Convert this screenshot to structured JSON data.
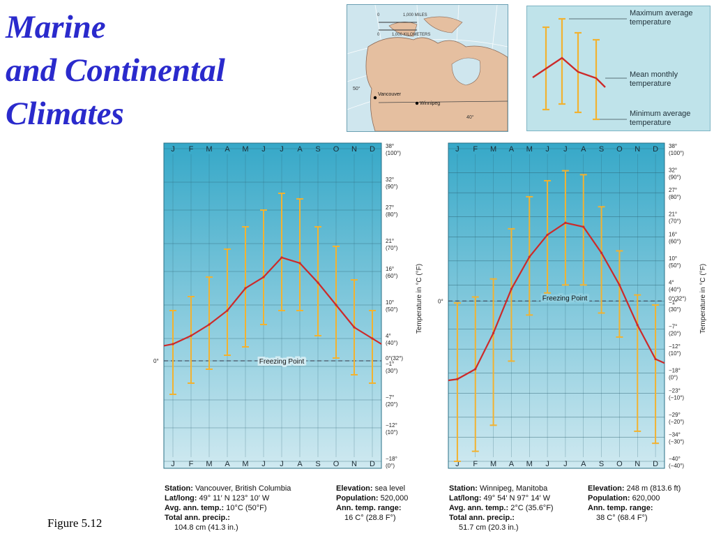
{
  "title": {
    "line1": "Marine",
    "line2": "and Continental",
    "line3": "Climates"
  },
  "figure_label": "Figure  5.12",
  "map": {
    "scale_zero_a": "0",
    "scale_miles": "1,000 MILES",
    "scale_zero_b": "0",
    "scale_km": "1,000 KILOMETERS",
    "lat_50": "50°",
    "lat_40": "40°",
    "city1": "Vancouver",
    "city2": "Winnipeg"
  },
  "key": {
    "max_label_1": "Maximum average",
    "max_label_2": "temperature",
    "mean_label_1": "Mean monthly",
    "mean_label_2": "temperature",
    "min_label_1": "Minimum average",
    "min_label_2": "temperature"
  },
  "colors": {
    "mean_line": "#cc2a2a",
    "range_bar": "#f2b230",
    "sky_top": "#36a8c8",
    "sky_bottom": "#cfe9f0"
  },
  "freezing_label": "Freezing Point",
  "zero_label": "0°",
  "axis_title": "Temperature in °C (°F)",
  "chart_data": [
    {
      "type": "line",
      "months": [
        "J",
        "F",
        "M",
        "A",
        "M",
        "J",
        "J",
        "A",
        "S",
        "O",
        "N",
        "D"
      ],
      "y_ticks_c": [
        "38°",
        "32°",
        "27°",
        "21°",
        "16°",
        "10°",
        "4°",
        "0°(32°)",
        "−1°",
        "−7°",
        "−12°",
        "−18°"
      ],
      "y_ticks_f": [
        "(100°)",
        "(90°)",
        "(80°)",
        "(70°)",
        "(60°)",
        "(50°)",
        "(40°)",
        "",
        "(30°)",
        "(20°)",
        "(10°)",
        "(0°)"
      ],
      "ylim": [
        -18,
        38
      ],
      "mean": [
        3,
        4.5,
        6.5,
        9,
        13,
        15,
        18.5,
        17.5,
        14,
        10,
        6,
        4
      ],
      "max": [
        9,
        11.5,
        15,
        20,
        24,
        27,
        30,
        29,
        24,
        20.5,
        14.5,
        9
      ],
      "min": [
        -6,
        -4,
        -1.5,
        1,
        2.5,
        6.5,
        9,
        9,
        4.5,
        0.5,
        -2.5,
        -4
      ],
      "stations": {
        "station_label": "Station:",
        "station": "Vancouver, British Columbia",
        "latlong_label": "Lat/long:",
        "latlong": "49° 11′ N 123° 10′ W",
        "avg_label": "Avg. ann. temp.:",
        "avg": "10°C (50°F)",
        "precip_label": "Total ann. precip.:",
        "precip": "104.8 cm (41.3 in.)",
        "elev_label": "Elevation:",
        "elev": "sea level",
        "pop_label": "Population:",
        "pop": "520,000",
        "range_label": "Ann. temp. range:",
        "range": "16 C° (28.8 F°)"
      }
    },
    {
      "type": "line",
      "months": [
        "J",
        "F",
        "M",
        "A",
        "M",
        "J",
        "J",
        "A",
        "S",
        "O",
        "N",
        "D"
      ],
      "y_ticks_c": [
        "38°",
        "32°",
        "27°",
        "21°",
        "16°",
        "10°",
        "4°",
        "0°(32°)",
        "−1°",
        "−7°",
        "−12°",
        "−18°",
        "−23°",
        "−29°",
        "−34°",
        "−40°"
      ],
      "y_ticks_f": [
        "(100°)",
        "(90°)",
        "(80°)",
        "(70°)",
        "(60°)",
        "(50°)",
        "(40°)",
        "",
        "(30°)",
        "(20°)",
        "(10°)",
        "(0°)",
        "(−10°)",
        "(−20°)",
        "(−30°)",
        "(−40°)"
      ],
      "ylim": [
        -40,
        38
      ],
      "mean": [
        -19.5,
        -17,
        -8,
        3,
        11,
        16.5,
        19.5,
        18.5,
        12,
        4,
        -6,
        -14.5
      ],
      "max": [
        -0.5,
        1,
        5.5,
        18,
        26,
        30,
        32.5,
        31.5,
        23.5,
        12.5,
        1.5,
        -1
      ],
      "min": [
        -40,
        -37.5,
        -31,
        -15,
        -3.5,
        2,
        4,
        4,
        -3,
        -9,
        -32.5,
        -35.5
      ],
      "stations": {
        "station_label": "Station:",
        "station": "Winnipeg, Manitoba",
        "latlong_label": "Lat/long:",
        "latlong": "49° 54′ N 97° 14′ W",
        "avg_label": "Avg. ann. temp.:",
        "avg": "2°C (35.6°F)",
        "precip_label": "Total ann. precip.:",
        "precip": "51.7 cm (20.3 in.)",
        "elev_label": "Elevation:",
        "elev": "248 m (813.6 ft)",
        "pop_label": "Population:",
        "pop": "620,000",
        "range_label": "Ann. temp. range:",
        "range": "38 C° (68.4 F°)"
      }
    }
  ]
}
